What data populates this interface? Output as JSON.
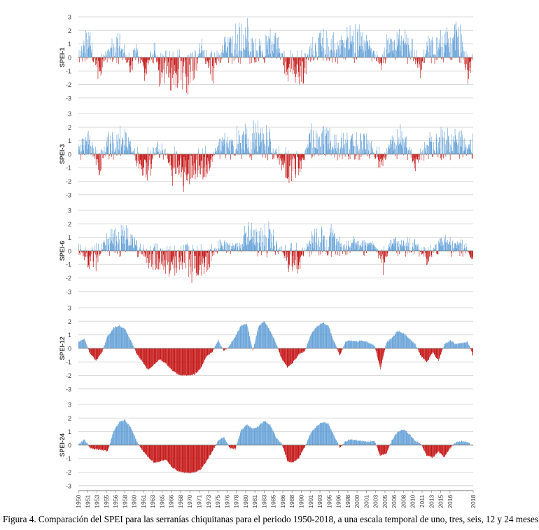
{
  "caption": "Figura 4. Comparación del SPEI para las serranías chiquitanas para el periodo 1950-2018, a una escala temporal de uno, tres, seis, 12 y 24 meses.",
  "colors": {
    "positive": "#5b9bd5",
    "negative": "#c00000",
    "grid": "#d9d9d9",
    "axis": "#7f7f7f"
  },
  "chart_data": [
    {
      "type": "bar",
      "ylabel": "SPEI-1",
      "ylim": [
        -3,
        3
      ],
      "yticks": [
        3,
        2,
        1,
        0,
        -1,
        -2,
        -3
      ],
      "grid": true,
      "time_range": [
        1950,
        2018
      ],
      "step": "monthly",
      "x": [
        1950,
        1952,
        1953.5,
        1955,
        1957,
        1959,
        1960,
        1961.5,
        1963,
        1964,
        1966,
        1967,
        1968.5,
        1970,
        1971,
        1973,
        1975,
        1977,
        1978,
        1979,
        1981,
        1982,
        1984,
        1986,
        1987,
        1989,
        1990,
        1992,
        1994,
        1996,
        1998,
        2000,
        2002,
        2003,
        2005,
        2007,
        2009,
        2010,
        2012,
        2014,
        2016,
        2017,
        2018
      ],
      "values": [
        0.9,
        2.4,
        -2.3,
        1.4,
        2.2,
        -1.6,
        1.5,
        -2.0,
        2.0,
        -2.1,
        -2.3,
        -3.0,
        -2.6,
        -2.1,
        1.8,
        -2.0,
        1.3,
        2.1,
        2.4,
        2.5,
        2.1,
        1.6,
        2.2,
        -2.0,
        -1.8,
        -2.1,
        1.8,
        2.0,
        1.6,
        1.8,
        2.4,
        1.9,
        -1.3,
        1.8,
        2.5,
        2.2,
        -1.6,
        1.5,
        2.0,
        2.3,
        2.7,
        -3.0,
        1.4
      ]
    },
    {
      "type": "bar",
      "ylabel": "SPEI-3",
      "ylim": [
        -3,
        3
      ],
      "yticks": [
        3,
        2,
        1,
        0,
        -1,
        -2,
        -3
      ],
      "grid": true,
      "time_range": [
        1950,
        2018
      ],
      "step": "monthly",
      "x": [
        1950,
        1952,
        1953.5,
        1955,
        1957,
        1958,
        1960,
        1962,
        1964,
        1966,
        1967,
        1968.5,
        1970,
        1972,
        1974,
        1976,
        1978,
        1980,
        1981,
        1983,
        1985,
        1986,
        1988,
        1990,
        1992,
        1994,
        1996,
        1998,
        2000,
        2002,
        2004,
        2006,
        2008,
        2010,
        2012,
        2014,
        2016,
        2018
      ],
      "values": [
        1.2,
        2.2,
        -2.0,
        1.6,
        2.3,
        2.4,
        -0.8,
        -1.9,
        1.7,
        -2.2,
        -2.4,
        -2.5,
        -2.1,
        -2.0,
        1.3,
        1.5,
        2.0,
        2.2,
        2.8,
        1.9,
        -2.0,
        -2.1,
        -2.0,
        2.1,
        2.4,
        1.5,
        1.6,
        1.8,
        1.5,
        -1.5,
        1.8,
        2.0,
        -1.3,
        1.4,
        1.9,
        2.0,
        1.6,
        1.3
      ]
    },
    {
      "type": "bar",
      "ylabel": "SPEI-6",
      "ylim": [
        -3,
        3
      ],
      "yticks": [
        3,
        2,
        1,
        0,
        -1,
        -2,
        -3
      ],
      "grid": true,
      "time_range": [
        1950,
        2018
      ],
      "step": "monthly",
      "x": [
        1950,
        1951.5,
        1953,
        1955,
        1957,
        1958,
        1960,
        1962,
        1964,
        1966,
        1968,
        1969,
        1970,
        1972,
        1974,
        1976,
        1977.5,
        1979,
        1981,
        1982.5,
        1984,
        1986,
        1988,
        1990,
        1992,
        1993.5,
        1995,
        1997,
        1999,
        2001,
        2002.5,
        2004,
        2006,
        2008,
        2010,
        2012,
        2014,
        2016,
        2018
      ],
      "values": [
        0.8,
        -1.4,
        -1.3,
        1.6,
        1.9,
        2.1,
        0.7,
        -1.4,
        -1.6,
        -2.0,
        -2.3,
        -2.4,
        -2.1,
        -2.1,
        0.8,
        0.6,
        0.5,
        2.1,
        1.8,
        2.3,
        1.4,
        -1.6,
        -1.5,
        1.6,
        1.9,
        2.1,
        0.9,
        1.0,
        0.8,
        0.6,
        -1.6,
        1.1,
        1.2,
        1.0,
        -1.2,
        1.0,
        1.1,
        0.9,
        -1.0
      ]
    },
    {
      "type": "area",
      "ylabel": "SPEI-12",
      "ylim": [
        -3,
        3
      ],
      "yticks": [
        3,
        2,
        1,
        0,
        -1,
        -2,
        -3
      ],
      "grid": true,
      "time_range": [
        1950,
        2018
      ],
      "step": "monthly",
      "x": [
        1950,
        1951,
        1952,
        1953,
        1954,
        1955,
        1956,
        1957,
        1958,
        1959,
        1960,
        1961,
        1962,
        1963,
        1964,
        1965,
        1966,
        1967,
        1968,
        1969,
        1970,
        1971,
        1972,
        1973,
        1974,
        1975,
        1976,
        1977,
        1978,
        1979,
        1980,
        1981,
        1982,
        1983,
        1984,
        1985,
        1986,
        1987,
        1988,
        1989,
        1990,
        1991,
        1992,
        1993,
        1994,
        1995,
        1996,
        1997,
        1998,
        1999,
        2000,
        2001,
        2002,
        2003,
        2004,
        2005,
        2006,
        2007,
        2008,
        2009,
        2010,
        2011,
        2012,
        2013,
        2014,
        2015,
        2016,
        2017,
        2018
      ],
      "values": [
        0.5,
        0.7,
        -0.4,
        -0.9,
        -0.3,
        0.9,
        1.5,
        1.7,
        1.4,
        0.6,
        -0.4,
        -1.0,
        -1.6,
        -1.2,
        -0.8,
        -1.1,
        -1.6,
        -1.9,
        -2.0,
        -2.0,
        -1.9,
        -1.5,
        -0.6,
        -0.3,
        0.6,
        -0.2,
        0.2,
        0.9,
        1.7,
        1.8,
        -0.2,
        1.6,
        2.0,
        1.3,
        0.4,
        -0.8,
        -1.4,
        -1.0,
        -0.4,
        -0.2,
        1.0,
        1.6,
        1.9,
        1.7,
        0.5,
        -0.5,
        0.5,
        0.6,
        0.5,
        0.6,
        0.4,
        0.2,
        -1.5,
        0.4,
        0.8,
        1.3,
        1.1,
        0.7,
        0.3,
        -0.6,
        -1.0,
        -0.3,
        -0.9,
        0.3,
        0.6,
        0.3,
        0.4,
        0.5,
        -0.6
      ]
    },
    {
      "type": "area",
      "ylabel": "SPEI-24",
      "ylim": [
        -3,
        3
      ],
      "yticks": [
        3,
        2,
        1,
        0,
        -1,
        -2,
        -3
      ],
      "grid": true,
      "time_range": [
        1950,
        2018
      ],
      "step": "monthly",
      "x": [
        1950,
        1951,
        1952,
        1953,
        1954,
        1955,
        1956,
        1957,
        1958,
        1959,
        1960,
        1961,
        1962,
        1963,
        1964,
        1965,
        1966,
        1967,
        1968,
        1969,
        1970,
        1971,
        1972,
        1973,
        1974,
        1975,
        1976,
        1977,
        1978,
        1979,
        1980,
        1981,
        1982,
        1983,
        1984,
        1985,
        1986,
        1987,
        1988,
        1989,
        1990,
        1991,
        1992,
        1993,
        1994,
        1995,
        1996,
        1997,
        1998,
        1999,
        2000,
        2001,
        2002,
        2003,
        2004,
        2005,
        2006,
        2007,
        2008,
        2009,
        2010,
        2011,
        2012,
        2013,
        2014,
        2015,
        2016,
        2017,
        2018
      ],
      "values": [
        0.05,
        0.4,
        -0.2,
        -0.3,
        -0.35,
        -0.45,
        1.0,
        1.7,
        1.85,
        1.3,
        0.3,
        -0.4,
        -0.9,
        -1.3,
        -1.2,
        -1.1,
        -1.6,
        -1.9,
        -2.0,
        -2.05,
        -2.0,
        -1.8,
        -1.2,
        -0.5,
        0.3,
        0.6,
        -0.2,
        -0.3,
        1.1,
        1.5,
        1.2,
        1.4,
        1.8,
        1.5,
        0.6,
        0.1,
        -1.2,
        -1.3,
        -0.9,
        -0.1,
        0.9,
        1.4,
        1.7,
        1.6,
        0.7,
        -0.2,
        0.3,
        0.4,
        0.35,
        0.3,
        0.25,
        0.3,
        -0.8,
        -0.6,
        0.4,
        1.0,
        1.15,
        0.8,
        0.3,
        0.1,
        -0.8,
        -0.9,
        -0.5,
        -0.9,
        -0.2,
        0.2,
        0.3,
        0.25,
        -0.1
      ]
    }
  ],
  "x_axis": {
    "labels": [
      "1950",
      "1951",
      "1953",
      "1955",
      "1956",
      "1958",
      "1960",
      "1961",
      "1963",
      "1965",
      "1966",
      "1968",
      "1970",
      "1971",
      "1973",
      "1975",
      "1976",
      "1978",
      "1980",
      "1981",
      "1983",
      "1985",
      "1986",
      "1988",
      "1990",
      "1991",
      "1993",
      "1995",
      "1996",
      "1998",
      "2000",
      "2001",
      "2003",
      "2005",
      "2006",
      "2008",
      "2010",
      "2011",
      "2013",
      "2015",
      "2016",
      "2018"
    ],
    "years": [
      1950,
      1951.6,
      1953.2,
      1954.8,
      1956.4,
      1958,
      1959.6,
      1961.2,
      1962.8,
      1964.4,
      1966,
      1967.6,
      1969.2,
      1970.8,
      1972.4,
      1974,
      1975.6,
      1977.2,
      1978.8,
      1980.4,
      1982,
      1983.6,
      1985.2,
      1986.8,
      1988.4,
      1990,
      1991.6,
      1993.2,
      1994.8,
      1996.4,
      1998,
      1999.6,
      2001.2,
      2002.8,
      2004.4,
      2006,
      2007.6,
      2009.2,
      2010.8,
      2012.4,
      2014,
      2018
    ]
  }
}
